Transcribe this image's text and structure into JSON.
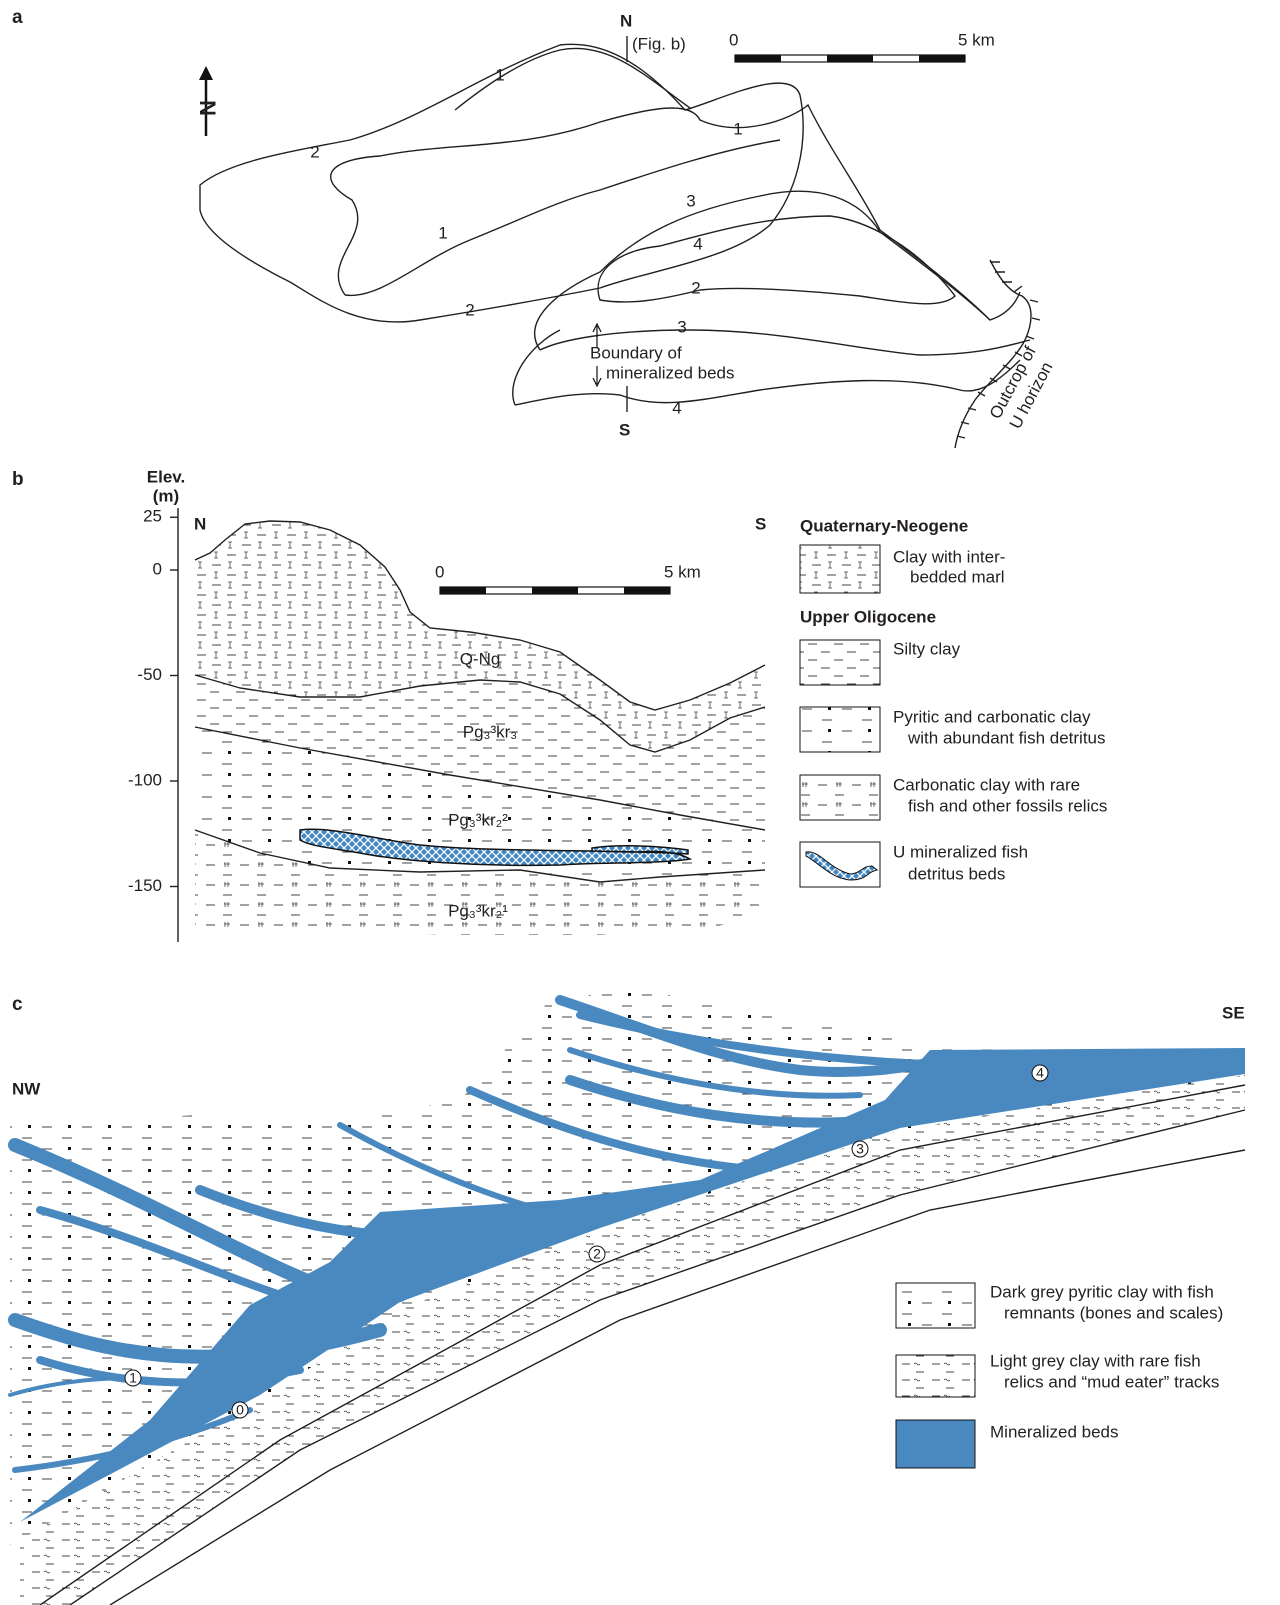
{
  "panel_a": {
    "label": "a",
    "north_label": "N",
    "north_ref": "(Fig. b)",
    "south_label": "S",
    "compass": "N",
    "scale_bar": {
      "start": "0",
      "end": "5 km"
    },
    "contour_labels": [
      "1",
      "1",
      "1",
      "2",
      "2",
      "2",
      "3",
      "3",
      "4",
      "4"
    ],
    "boundary_label": [
      "Boundary of",
      "mineralized beds"
    ],
    "outcrop_label": [
      "Outcrop of",
      "U horizon"
    ]
  },
  "panel_b": {
    "label": "b",
    "axis_title": [
      "Elev.",
      "(m)"
    ],
    "yticks": [
      25,
      0,
      -50,
      -100,
      -150
    ],
    "north_label": "N",
    "south_label": "S",
    "scale_bar": {
      "start": "0",
      "end": "5 km"
    },
    "units": [
      "Q-Ng",
      "Pg₃³kr₃",
      "Pg₃³kr₂²",
      "Pg₃³kr₂¹"
    ],
    "legend": [
      {
        "title": "Quaternary-Neogene",
        "items": [
          {
            "lines": [
              "Clay with inter-",
              "bedded marl"
            ]
          }
        ]
      },
      {
        "title": "Upper Oligocene",
        "items": [
          {
            "lines": [
              "Silty clay"
            ]
          },
          {
            "lines": [
              "Pyritic and carbonatic clay",
              "with abundant fish detritus"
            ]
          },
          {
            "lines": [
              "Carbonatic clay with rare",
              "fish and other fossils relics"
            ]
          },
          {
            "lines": [
              "U mineralized fish",
              "detritus beds"
            ]
          }
        ]
      }
    ]
  },
  "panel_c": {
    "label": "c",
    "left_label": "NW",
    "right_label": "SE",
    "bed_labels": [
      "0",
      "1",
      "2",
      "3",
      "4"
    ],
    "legend": [
      {
        "lines": [
          "Dark grey pyritic clay with fish",
          "remnants (bones and scales)"
        ]
      },
      {
        "lines": [
          "Light grey clay with rare fish",
          "relics  and “mud eater” tracks"
        ]
      },
      {
        "lines": [
          "Mineralized beds"
        ]
      }
    ]
  }
}
